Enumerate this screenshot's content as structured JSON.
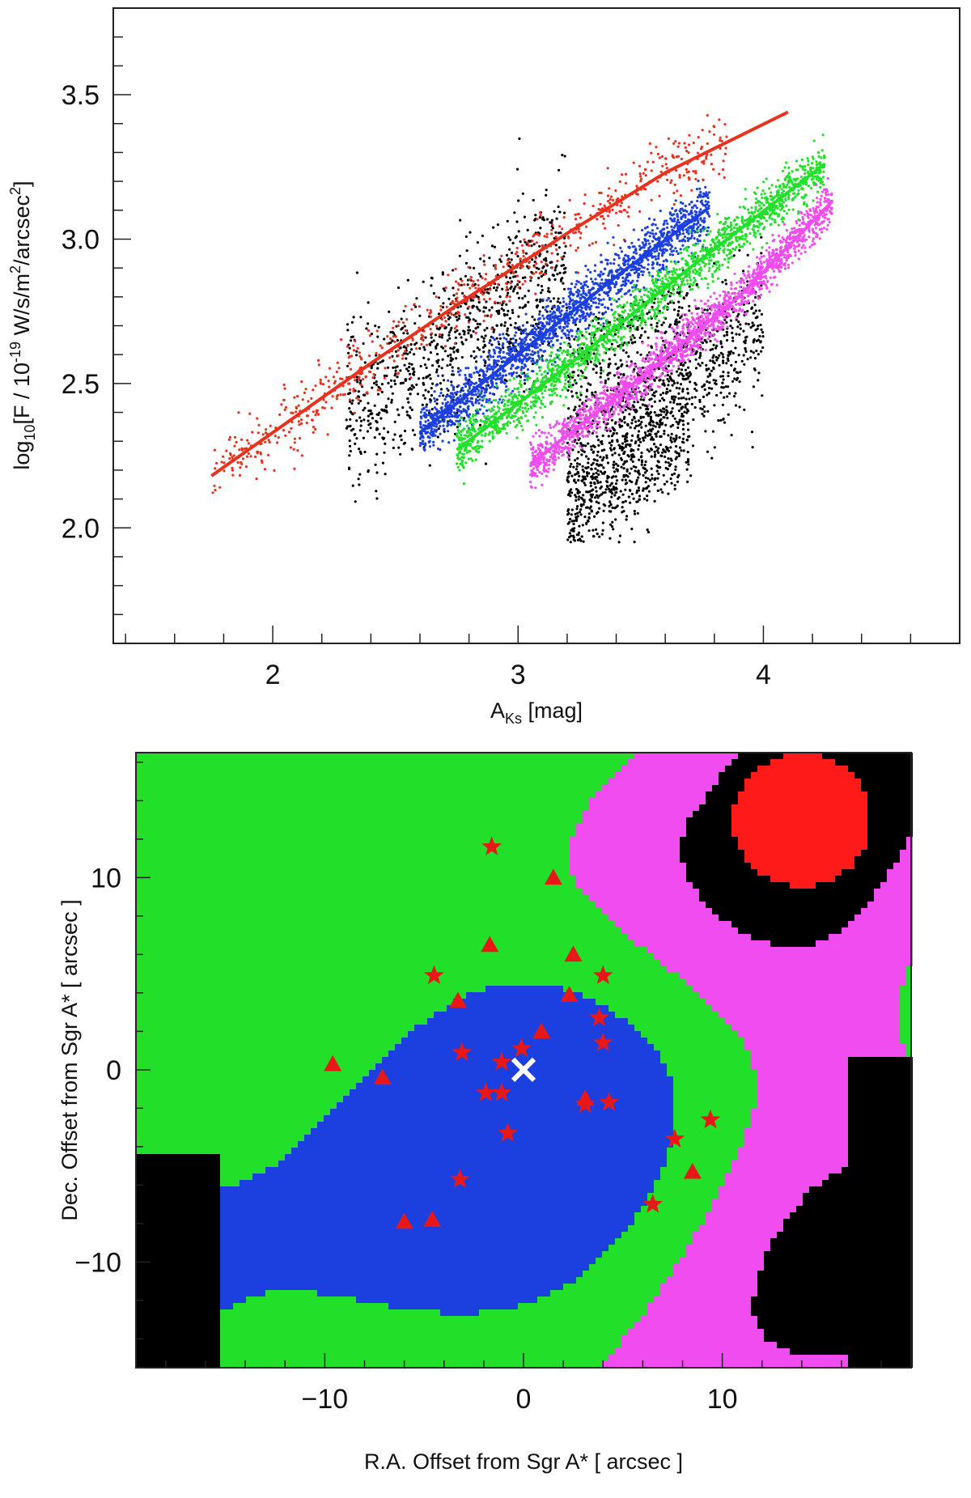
{
  "chart_data": [
    {
      "type": "scatter",
      "title": "",
      "xlabel": {
        "main": "A",
        "sub": "Ks",
        "unit": " [mag]"
      },
      "ylabel": {
        "pre": "log",
        "sub": "10",
        "mid": "[F / 10",
        "exp": "-19",
        "post1": " W/s/m",
        "exp2": "2",
        "post2": "/arcsec",
        "exp3": "2",
        "end": "]"
      },
      "xlim": [
        1.35,
        4.8
      ],
      "ylim": [
        1.6,
        3.8
      ],
      "xticks": [
        {
          "value": 2,
          "label": "2"
        },
        {
          "value": 3,
          "label": "3"
        },
        {
          "value": 4,
          "label": "4"
        }
      ],
      "yticks": [
        {
          "value": 2.0,
          "label": "2.0"
        },
        {
          "value": 2.5,
          "label": "2.5"
        },
        {
          "value": 3.0,
          "label": "3.0"
        },
        {
          "value": 3.5,
          "label": "3.5"
        }
      ],
      "grid": false,
      "series": [
        {
          "color": "#e8321e",
          "fit": {
            "x": [
              1.75,
              2.0,
              2.4,
              2.8,
              3.2,
              3.6,
              4.1
            ],
            "y": [
              2.18,
              2.33,
              2.57,
              2.8,
              3.02,
              3.23,
              3.44
            ]
          },
          "band": {
            "x0": 1.75,
            "x1": 3.85,
            "spread": 0.06
          }
        },
        {
          "color": "#1c3fe0",
          "fit": {
            "x": [
              2.6,
              3.0,
              3.4,
              3.78
            ],
            "y": [
              2.33,
              2.6,
              2.87,
              3.11
            ]
          },
          "band": {
            "x0": 2.6,
            "x1": 3.78,
            "spread": 0.08
          }
        },
        {
          "color": "#22e02a",
          "fit": {
            "x": [
              2.75,
              3.2,
              3.7,
              4.25
            ],
            "y": [
              2.27,
              2.56,
              2.9,
              3.26
            ]
          },
          "band": {
            "x0": 2.75,
            "x1": 4.25,
            "spread": 0.07
          }
        },
        {
          "color": "#f04cf0",
          "fit": {
            "x": [
              3.05,
              3.5,
              3.9,
              4.28
            ],
            "y": [
              2.22,
              2.52,
              2.8,
              3.13
            ]
          },
          "band": {
            "x0": 3.05,
            "x1": 4.28,
            "spread": 0.06
          }
        },
        {
          "color": "#000000",
          "band": {
            "x0": 2.4,
            "x1": 4.0,
            "spread": 0.12
          }
        }
      ]
    },
    {
      "type": "heatmap",
      "title": "",
      "xlabel": "R.A. Offset from Sgr A* [ arcsec ]",
      "ylabel": "Dec. Offset from Sgr A* [ arcsec ]",
      "xlim": [
        -19.5,
        19.5
      ],
      "ylim": [
        -15.5,
        16.5
      ],
      "xticks": [
        {
          "value": -10,
          "label": "−10"
        },
        {
          "value": 0,
          "label": "0"
        },
        {
          "value": 10,
          "label": "10"
        }
      ],
      "yticks": [
        {
          "value": -10,
          "label": "−10"
        },
        {
          "value": 0,
          "label": "0"
        },
        {
          "value": 10,
          "label": "10"
        }
      ],
      "classes": [
        "#000000",
        "#f04cf0",
        "#22e02a",
        "#1c3fe0",
        "#ff1a1a",
        "#ffffff"
      ],
      "markers": {
        "center_cross": {
          "x": 0,
          "y": 0,
          "color": "#ffffff"
        },
        "stars": [
          {
            "x": -1.6,
            "y": 11.6
          },
          {
            "x": -4.5,
            "y": 4.9
          },
          {
            "x": 4.0,
            "y": 4.9
          },
          {
            "x": 3.8,
            "y": 2.7
          },
          {
            "x": 4.0,
            "y": 1.4
          },
          {
            "x": -3.1,
            "y": 0.9
          },
          {
            "x": -1.1,
            "y": 0.4
          },
          {
            "x": -0.1,
            "y": 1.1
          },
          {
            "x": -1.1,
            "y": -1.2
          },
          {
            "x": -1.9,
            "y": -1.2
          },
          {
            "x": 3.1,
            "y": -1.8
          },
          {
            "x": 4.3,
            "y": -1.7
          },
          {
            "x": 9.4,
            "y": -2.6
          },
          {
            "x": -0.8,
            "y": -3.3
          },
          {
            "x": 7.6,
            "y": -3.6
          },
          {
            "x": -3.2,
            "y": -5.7
          },
          {
            "x": 6.5,
            "y": -7.0
          }
        ],
        "triangles": [
          {
            "x": 1.5,
            "y": 10.0
          },
          {
            "x": -1.7,
            "y": 6.5
          },
          {
            "x": 2.5,
            "y": 6.0
          },
          {
            "x": 2.3,
            "y": 3.9
          },
          {
            "x": -3.3,
            "y": 3.6
          },
          {
            "x": 0.9,
            "y": 2.0
          },
          {
            "x": -9.6,
            "y": 0.3
          },
          {
            "x": -7.1,
            "y": -0.4
          },
          {
            "x": 3.1,
            "y": -1.5
          },
          {
            "x": 8.5,
            "y": -5.3
          },
          {
            "x": -6.0,
            "y": -7.9
          },
          {
            "x": -4.6,
            "y": -7.8
          }
        ]
      }
    }
  ]
}
